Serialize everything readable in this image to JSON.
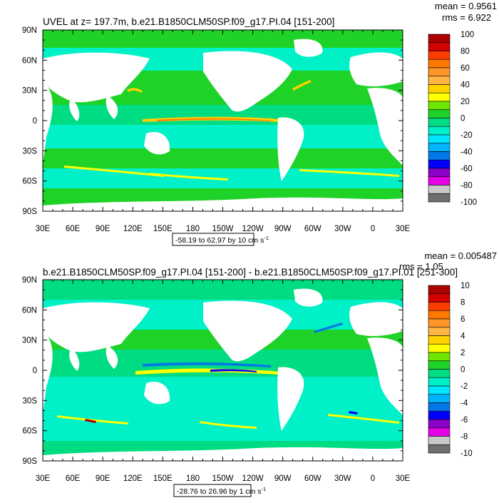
{
  "panels": [
    {
      "title": "UVEL at z= 197.7m, b.e21.B1850CLM50SP.f09_g17.PI.04 [151-200]",
      "stats": {
        "mean": "mean = 0.9561",
        "rms": "rms = 6.922"
      },
      "range_label": "-58.19 to 62.97 by 10 cm s",
      "range_sup": "-1",
      "colorbar_labels": [
        "100",
        "80",
        "60",
        "40",
        "20",
        "0",
        "-20",
        "-40",
        "-60",
        "-80",
        "-100"
      ],
      "colorbar_colors": [
        "#aa0000",
        "#d20000",
        "#ff3c00",
        "#ff7800",
        "#ff9628",
        "#ffb446",
        "#ffd200",
        "#ffff00",
        "#6ee600",
        "#1ed228",
        "#00dc82",
        "#00f0c8",
        "#00e6ff",
        "#00b4ff",
        "#0078e6",
        "#0000ff",
        "#8c00c8",
        "#e600e6",
        "#c8c8c8",
        "#6e6e6e"
      ]
    },
    {
      "title": "b.e21.B1850CLM50SP.f09_g17.PI.04 [151-200] - b.e21.B1850CLM50SP.f09_g17.PI.01 [251-300]",
      "stats": {
        "mean": "mean = 0.005487",
        "rms": "rms = 1.05"
      },
      "range_label": "-28.76 to 26.96 by 1 cm s",
      "range_sup": "-1",
      "colorbar_labels": [
        "10",
        "8",
        "6",
        "4",
        "2",
        "0",
        "-2",
        "-4",
        "-6",
        "-8",
        "-10"
      ],
      "colorbar_colors": [
        "#aa0000",
        "#d20000",
        "#ff3c00",
        "#ff7800",
        "#ff9628",
        "#ffb446",
        "#ffd200",
        "#ffff00",
        "#6ee600",
        "#1ed228",
        "#00dc82",
        "#00f0c8",
        "#00e6ff",
        "#00b4ff",
        "#0078e6",
        "#0000ff",
        "#8c00c8",
        "#e600e6",
        "#c8c8c8",
        "#6e6e6e"
      ]
    }
  ],
  "axes": {
    "x_tick_labels": [
      "30E",
      "60E",
      "90E",
      "120E",
      "150E",
      "180",
      "150W",
      "120W",
      "90W",
      "60W",
      "30W",
      "0",
      "30E"
    ],
    "y_tick_labels": [
      "90N",
      "60N",
      "30N",
      "0",
      "30S",
      "60S",
      "90S"
    ]
  },
  "chart_data": [
    {
      "type": "heatmap",
      "title": "UVEL at z= 197.7m, b.e21.B1850CLM50SP.f09_g17.PI.04 [151-200]",
      "x": [
        "30E",
        "60E",
        "90E",
        "120E",
        "150E",
        "180",
        "150W",
        "120W",
        "90W",
        "60W",
        "30W",
        "0",
        "30E"
      ],
      "y": [
        "90N",
        "60N",
        "30N",
        "0",
        "30S",
        "60S",
        "90S"
      ],
      "xlim": [
        30,
        390
      ],
      "ylim": [
        -90,
        90
      ],
      "zmin": -58.19,
      "zmax": 62.97,
      "contour_interval": 10,
      "mean": 0.9561,
      "rms": 6.922,
      "colorbar_ticks": [
        100,
        80,
        60,
        40,
        20,
        0,
        -20,
        -40,
        -60,
        -80,
        -100
      ]
    },
    {
      "type": "heatmap",
      "title": "b.e21.B1850CLM50SP.f09_g17.PI.04 [151-200] - b.e21.B1850CLM50SP.f09_g17.PI.01 [251-300]",
      "x": [
        "30E",
        "60E",
        "90E",
        "120E",
        "150E",
        "180",
        "150W",
        "120W",
        "90W",
        "60W",
        "30W",
        "0",
        "30E"
      ],
      "y": [
        "90N",
        "60N",
        "30N",
        "0",
        "30S",
        "60S",
        "90S"
      ],
      "xlim": [
        30,
        390
      ],
      "ylim": [
        -90,
        90
      ],
      "zmin": -28.76,
      "zmax": 26.96,
      "contour_interval": 1,
      "mean": 0.005487,
      "rms": 1.05,
      "colorbar_ticks": [
        10,
        8,
        6,
        4,
        2,
        0,
        -2,
        -4,
        -6,
        -8,
        -10
      ]
    }
  ]
}
